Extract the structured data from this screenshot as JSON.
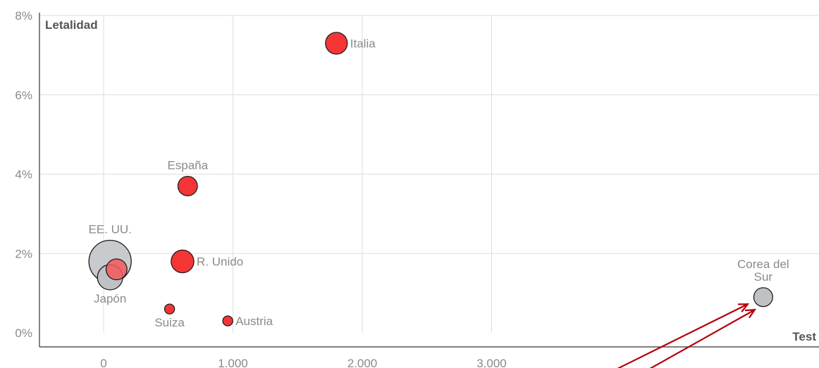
{
  "chart_data": {
    "type": "scatter",
    "xlabel": "Test",
    "ylabel": "Letalidad",
    "xlim": [
      -500,
      5500
    ],
    "ylim": [
      0,
      8
    ],
    "x_ticks": [
      {
        "value": 0,
        "label": "0"
      },
      {
        "value": 1000,
        "label": "1.000"
      },
      {
        "value": 2000,
        "label": "2.000"
      },
      {
        "value": 3000,
        "label": "3.000"
      }
    ],
    "y_ticks": [
      {
        "value": 0,
        "label": "0%"
      },
      {
        "value": 2,
        "label": "2%"
      },
      {
        "value": 4,
        "label": "4%"
      },
      {
        "value": 6,
        "label": "6%"
      },
      {
        "value": 8,
        "label": "8%"
      }
    ],
    "points": [
      {
        "label": "EE. UU.",
        "x": 50,
        "y": 1.8,
        "size": 9,
        "color": "#bfc1c4",
        "label_lines": [
          "EE. UU."
        ],
        "label_pos": "above"
      },
      {
        "label": "Japón",
        "x": 50,
        "y": 1.4,
        "size": 3.2,
        "color": "#bfc1c4",
        "label_lines": [
          "Japón"
        ],
        "label_pos": "below"
      },
      {
        "label": "",
        "x": 100,
        "y": 1.6,
        "size": 2.2,
        "color": "#f2595c",
        "label_lines": [],
        "label_pos": "none"
      },
      {
        "label": "Italia",
        "x": 1800,
        "y": 7.3,
        "size": 2.4,
        "color": "#f53535",
        "label_lines": [
          "Italia"
        ],
        "label_pos": "right"
      },
      {
        "label": "España",
        "x": 650,
        "y": 3.7,
        "size": 1.9,
        "color": "#f53535",
        "label_lines": [
          "España"
        ],
        "label_pos": "above"
      },
      {
        "label": "R. Unido",
        "x": 610,
        "y": 1.8,
        "size": 2.6,
        "color": "#f53535",
        "label_lines": [
          "R. Unido"
        ],
        "label_pos": "right"
      },
      {
        "label": "Suiza",
        "x": 510,
        "y": 0.6,
        "size": 0.5,
        "color": "#f53535",
        "label_lines": [
          "Suiza"
        ],
        "label_pos": "below"
      },
      {
        "label": "Austria",
        "x": 960,
        "y": 0.3,
        "size": 0.5,
        "color": "#f53535",
        "label_lines": [
          "Austria"
        ],
        "label_pos": "right"
      },
      {
        "label": "Corea del Sur",
        "x": 5100,
        "y": 0.9,
        "size": 1.8,
        "color": "#bfc1c4",
        "label_lines": [
          "Corea del",
          "Sur"
        ],
        "label_pos": "above"
      }
    ],
    "annotation": {
      "type": "arrows",
      "color": "#b5000c",
      "target": "Corea del Sur"
    }
  }
}
